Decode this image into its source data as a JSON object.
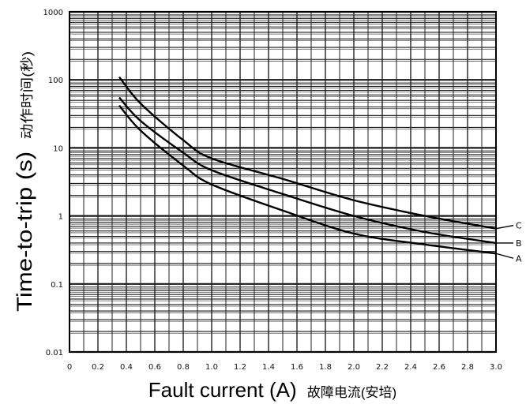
{
  "chart_data": {
    "type": "line",
    "xlabel": "Fault current (A)",
    "xlabel_cn": "故障电流(安培)",
    "ylabel": "Time-to-trip (s)",
    "ylabel_cn": "动作时间(秒)",
    "x_scale": "linear",
    "y_scale": "log",
    "xlim": [
      0,
      3.0
    ],
    "ylim": [
      0.01,
      1000
    ],
    "x_ticks": [
      "0",
      "0.2",
      "0.4",
      "0.6",
      "0.8",
      "1.0",
      "1.2",
      "1.4",
      "1.6",
      "1.8",
      "2.0",
      "2.2",
      "2.4",
      "2.6",
      "2.8",
      "3.0"
    ],
    "y_ticks": [
      "0.01",
      "0.1",
      "1",
      "10",
      "100",
      "1000"
    ],
    "grid": true,
    "series": [
      {
        "name": "C",
        "x": [
          0.35,
          0.5,
          0.8,
          1.0,
          1.5,
          2.0,
          2.5,
          3.0
        ],
        "y": [
          110,
          45,
          13,
          7,
          3.5,
          1.7,
          1.0,
          0.65
        ]
      },
      {
        "name": "B",
        "x": [
          0.35,
          0.5,
          0.8,
          1.0,
          1.5,
          2.0,
          2.5,
          3.0
        ],
        "y": [
          55,
          25,
          8.5,
          4.7,
          2.1,
          1.0,
          0.58,
          0.4
        ]
      },
      {
        "name": "A",
        "x": [
          0.35,
          0.5,
          0.8,
          1.0,
          1.5,
          2.0,
          2.5,
          3.0
        ],
        "y": [
          42,
          18,
          5.5,
          2.9,
          1.2,
          0.55,
          0.38,
          0.28
        ]
      }
    ]
  }
}
